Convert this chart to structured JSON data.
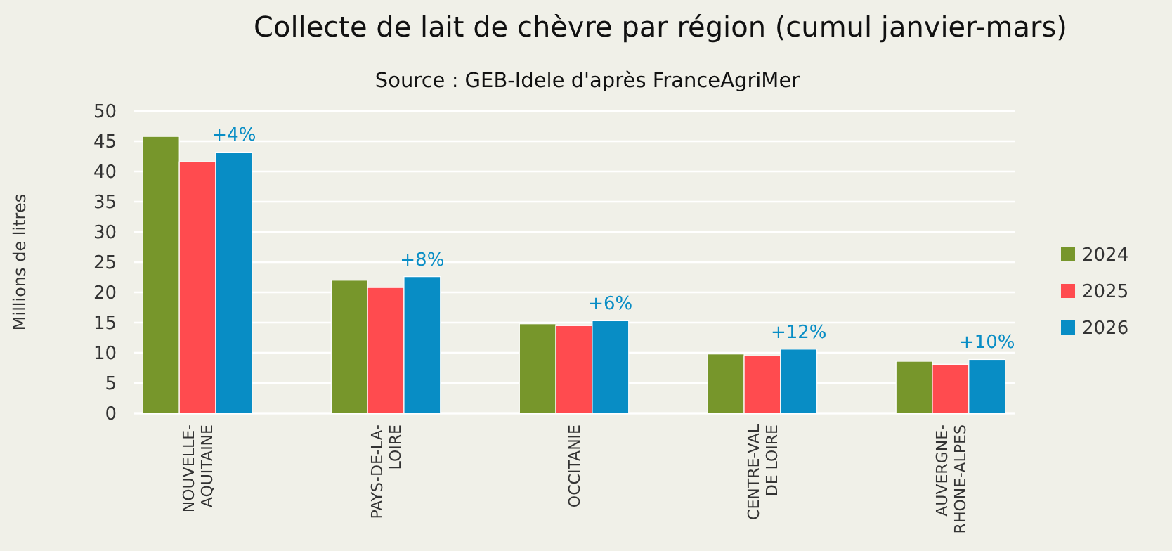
{
  "chart_data": {
    "type": "bar",
    "title": "Collecte de lait de chèvre par région (cumul janvier-mars)",
    "subtitle": "Source : GEB-Idele d'après FranceAgriMer",
    "ylabel": "Millions de litres",
    "categories": [
      "NOUVELLE-\nAQUITAINE",
      "PAYS-DE-LA-\nLOIRE",
      "OCCITANIE",
      "CENTRE-VAL\nDE LOIRE",
      "AUVERGNE-\nRHONE-ALPES"
    ],
    "series": [
      {
        "name": "2024",
        "color": "#77962b",
        "values": [
          45.8,
          22.0,
          14.8,
          9.8,
          8.6
        ]
      },
      {
        "name": "2025",
        "color": "#ff4b4f",
        "values": [
          41.6,
          20.8,
          14.5,
          9.5,
          8.1
        ]
      },
      {
        "name": "2026",
        "color": "#088dc5",
        "values": [
          43.2,
          22.6,
          15.3,
          10.6,
          8.9
        ]
      }
    ],
    "ylim": [
      0,
      50
    ],
    "yticks": [
      0,
      5,
      10,
      15,
      20,
      25,
      30,
      35,
      40,
      45,
      50
    ],
    "grid": "y",
    "legend": "right",
    "annotations": [
      "+4%",
      "+8%",
      "+6%",
      "+12%",
      "+10%"
    ]
  }
}
